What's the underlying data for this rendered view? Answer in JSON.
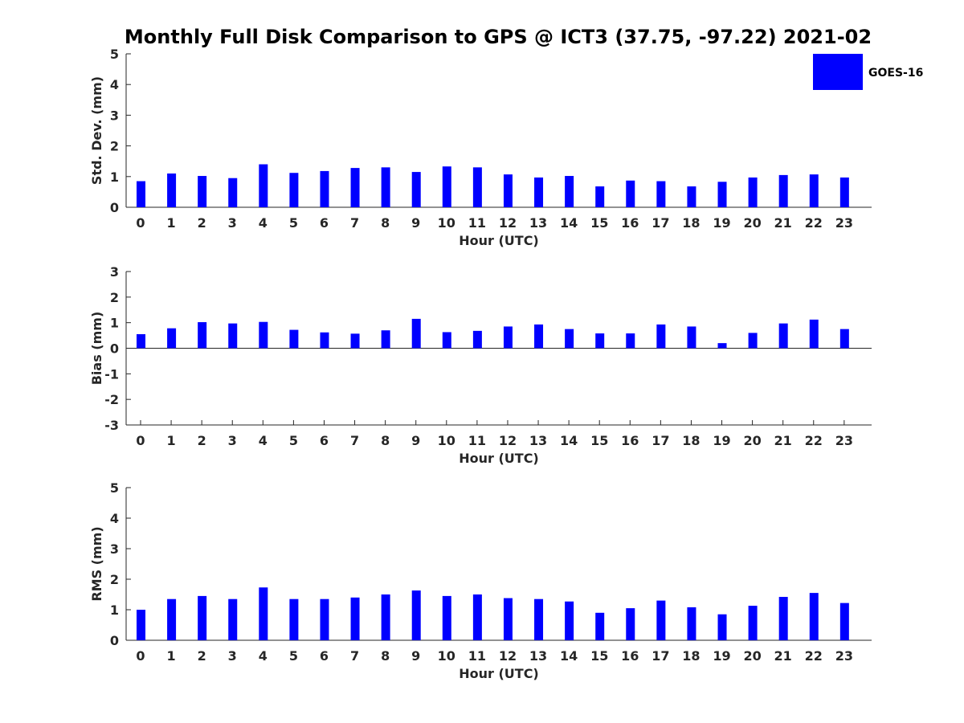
{
  "figure": {
    "title": "Monthly Full Disk Comparison to GPS @ ICT3 (37.75, -97.22) 2021-02",
    "legend": {
      "label": "GOES-16",
      "color": "#0000ff"
    }
  },
  "chart_data": [
    {
      "type": "bar",
      "categories": [
        "0",
        "1",
        "2",
        "3",
        "4",
        "5",
        "6",
        "7",
        "8",
        "9",
        "10",
        "11",
        "12",
        "13",
        "14",
        "15",
        "16",
        "17",
        "18",
        "19",
        "20",
        "21",
        "22",
        "23"
      ],
      "series": [
        {
          "name": "GOES-16",
          "values": [
            0.85,
            1.1,
            1.02,
            0.95,
            1.4,
            1.12,
            1.18,
            1.28,
            1.3,
            1.15,
            1.33,
            1.3,
            1.07,
            0.97,
            1.02,
            0.68,
            0.87,
            0.85,
            0.68,
            0.83,
            0.97,
            1.05,
            1.07,
            0.97
          ]
        }
      ],
      "title": "Monthly Full Disk Comparison to GPS @ ICT3 (37.75, -97.22) 2021-02",
      "xlabel": "Hour (UTC)",
      "ylabel": "Std. Dev. (mm)",
      "ylim": [
        0,
        5
      ],
      "yticks": [
        "0",
        "1",
        "2",
        "3",
        "4",
        "5"
      ],
      "grid": false,
      "legend": "top-right",
      "color": "#0000ff"
    },
    {
      "type": "bar",
      "categories": [
        "0",
        "1",
        "2",
        "3",
        "4",
        "5",
        "6",
        "7",
        "8",
        "9",
        "10",
        "11",
        "12",
        "13",
        "14",
        "15",
        "16",
        "17",
        "18",
        "19",
        "20",
        "21",
        "22",
        "23"
      ],
      "series": [
        {
          "name": "GOES-16",
          "values": [
            0.55,
            0.78,
            1.02,
            0.97,
            1.03,
            0.72,
            0.62,
            0.57,
            0.7,
            1.15,
            0.63,
            0.68,
            0.85,
            0.93,
            0.75,
            0.58,
            0.58,
            0.93,
            0.85,
            0.2,
            0.6,
            0.97,
            1.12,
            0.75
          ]
        }
      ],
      "xlabel": "Hour (UTC)",
      "ylabel": "Bias (mm)",
      "ylim": [
        -3,
        3
      ],
      "yticks": [
        "-3",
        "-2",
        "-1",
        "0",
        "1",
        "2",
        "3"
      ],
      "grid": false,
      "zero_line": true,
      "color": "#0000ff"
    },
    {
      "type": "bar",
      "categories": [
        "0",
        "1",
        "2",
        "3",
        "4",
        "5",
        "6",
        "7",
        "8",
        "9",
        "10",
        "11",
        "12",
        "13",
        "14",
        "15",
        "16",
        "17",
        "18",
        "19",
        "20",
        "21",
        "22",
        "23"
      ],
      "series": [
        {
          "name": "GOES-16",
          "values": [
            1.0,
            1.35,
            1.45,
            1.35,
            1.73,
            1.35,
            1.35,
            1.4,
            1.5,
            1.63,
            1.45,
            1.5,
            1.38,
            1.35,
            1.27,
            0.9,
            1.05,
            1.3,
            1.08,
            0.85,
            1.13,
            1.42,
            1.55,
            1.22
          ]
        }
      ],
      "xlabel": "Hour (UTC)",
      "ylabel": "RMS (mm)",
      "ylim": [
        0,
        5
      ],
      "yticks": [
        "0",
        "1",
        "2",
        "3",
        "4",
        "5"
      ],
      "grid": false,
      "color": "#0000ff"
    }
  ]
}
